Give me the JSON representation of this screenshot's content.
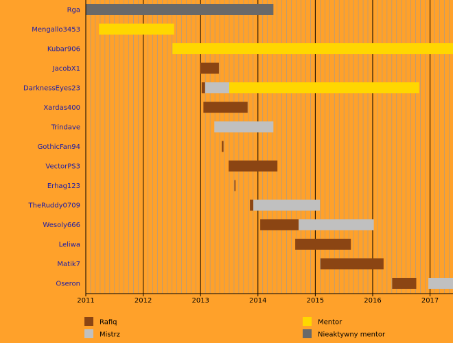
{
  "chart_data": {
    "type": "timeline",
    "title": "",
    "xlabel": "",
    "ylabel": "",
    "xlim": [
      2011.0,
      2017.4
    ],
    "x_ticks": [
      "2011",
      "2012",
      "2013",
      "2014",
      "2015",
      "2016",
      "2017"
    ],
    "grid": "minor-monthly + major-yearly vertical lines",
    "legend_placement": "bottom",
    "colors": {
      "background": "#FFA12A",
      "minor_grid": "#9B9B9B",
      "major_grid": "#000000",
      "Rafiq": "#8B4513",
      "Mistrz": "#C0C0C0",
      "Mentor": "#FFD700",
      "Nieaktywny mentor": "#696969"
    },
    "legend": [
      {
        "role": "Rafiq",
        "label": "Rafiq"
      },
      {
        "role": "Mistrz",
        "label": "Mistrz"
      },
      {
        "role": "Mentor",
        "label": "Mentor"
      },
      {
        "role": "Nieaktywny mentor",
        "label": "Nieaktywny mentor"
      }
    ],
    "rows": [
      {
        "name": "Rga",
        "segments": [
          {
            "role": "Nieaktywny mentor",
            "start": 2011.0,
            "end": 2014.27
          }
        ]
      },
      {
        "name": "Mengallo3453",
        "segments": [
          {
            "role": "Mentor",
            "start": 2011.23,
            "end": 2012.54
          }
        ]
      },
      {
        "name": "Kubar906",
        "segments": [
          {
            "role": "Mentor",
            "start": 2012.51,
            "end": 2017.4
          }
        ]
      },
      {
        "name": "JacobX1",
        "segments": [
          {
            "role": "Rafiq",
            "start": 2012.99,
            "end": 2013.32
          }
        ]
      },
      {
        "name": "DarknessEyes23",
        "segments": [
          {
            "role": "Rafiq",
            "start": 2013.02,
            "end": 2013.08
          },
          {
            "role": "Mistrz",
            "start": 2013.08,
            "end": 2013.5
          },
          {
            "role": "Mentor",
            "start": 2013.5,
            "end": 2016.81
          }
        ]
      },
      {
        "name": "Xardas400",
        "segments": [
          {
            "role": "Rafiq",
            "start": 2013.05,
            "end": 2013.82
          }
        ]
      },
      {
        "name": "Trindave",
        "segments": [
          {
            "role": "Mistrz",
            "start": 2013.24,
            "end": 2014.27
          }
        ]
      },
      {
        "name": "GothicFan94",
        "segments": [
          {
            "role": "Rafiq",
            "start": 2013.37,
            "end": 2013.4
          }
        ]
      },
      {
        "name": "VectorPS3",
        "segments": [
          {
            "role": "Rafiq",
            "start": 2013.49,
            "end": 2014.34
          }
        ]
      },
      {
        "name": "Erhag123",
        "segments": [
          {
            "role": "Rafiq",
            "start": 2013.59,
            "end": 2013.61
          }
        ]
      },
      {
        "name": "TheRuddy0709",
        "segments": [
          {
            "role": "Rafiq",
            "start": 2013.86,
            "end": 2013.92
          },
          {
            "role": "Mistrz",
            "start": 2013.92,
            "end": 2015.08
          }
        ]
      },
      {
        "name": "Wesoly666",
        "segments": [
          {
            "role": "Rafiq",
            "start": 2014.04,
            "end": 2014.71
          },
          {
            "role": "Mistrz",
            "start": 2014.71,
            "end": 2016.02
          }
        ]
      },
      {
        "name": "Leliwa",
        "segments": [
          {
            "role": "Rafiq",
            "start": 2014.65,
            "end": 2015.62
          }
        ]
      },
      {
        "name": "Matik7",
        "segments": [
          {
            "role": "Rafiq",
            "start": 2015.09,
            "end": 2016.19
          }
        ]
      },
      {
        "name": "Oseron",
        "segments": [
          {
            "role": "Rafiq",
            "start": 2016.34,
            "end": 2016.76
          },
          {
            "role": "Mistrz",
            "start": 2016.97,
            "end": 2017.4
          }
        ]
      }
    ]
  }
}
